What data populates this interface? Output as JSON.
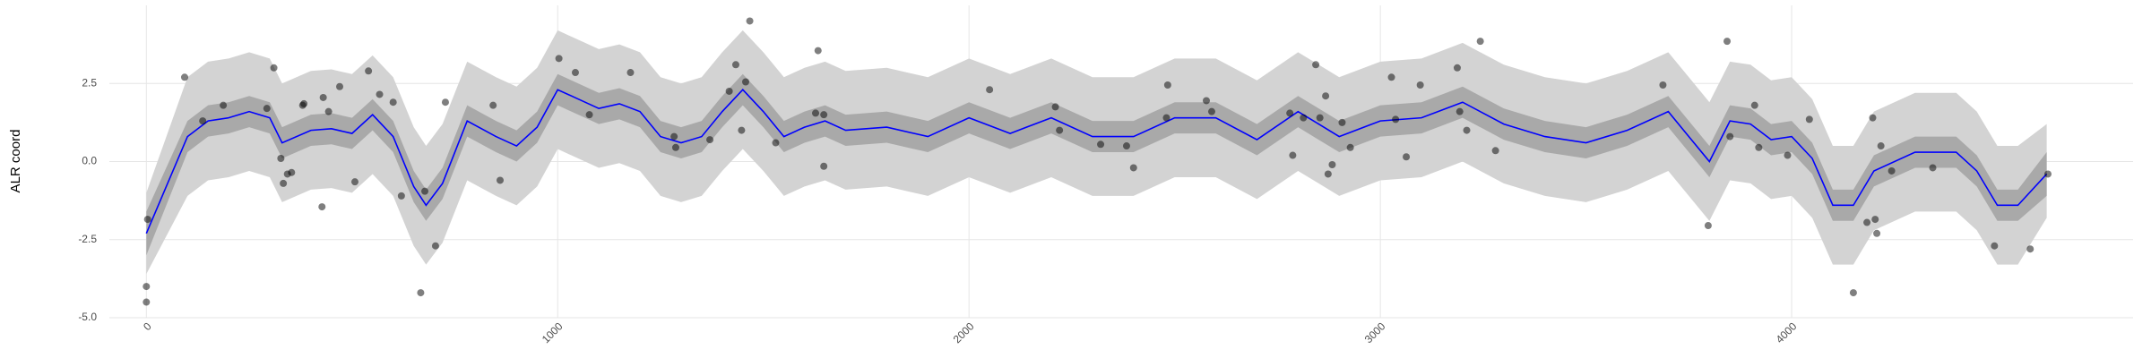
{
  "chart_data": {
    "type": "scatter",
    "y_label": "ALR coord",
    "xlim": [
      -90,
      4830
    ],
    "ylim": [
      -5,
      5
    ],
    "xticks": [
      0,
      1000,
      2000,
      3000,
      4000
    ],
    "yticks": [
      {
        "value": -5,
        "label": "-5.0"
      },
      -2.5,
      {
        "value": 0,
        "label": "0.0"
      },
      2.5
    ],
    "grid": true,
    "bands": [
      {
        "color": "#d3d3d3",
        "lower": [
          -3.6,
          -1.1,
          -0.6,
          -0.5,
          -0.3,
          -0.5,
          -1.3,
          -0.9,
          -0.85,
          -1.0,
          -0.4,
          -1.1,
          -2.7,
          -3.3,
          -2.6,
          -0.6,
          -1.1,
          -1.4,
          -0.8,
          0.4,
          0.1,
          -0.2,
          -0.05,
          -0.3,
          -1.1,
          -1.3,
          -1.1,
          -0.3,
          0.4,
          -0.3,
          -1.1,
          -0.8,
          -0.6,
          -0.9,
          -0.8,
          -1.1,
          -0.5,
          -1.0,
          -0.5,
          -1.1,
          -1.1,
          -0.5,
          -0.5,
          -1.2,
          -0.3,
          -0.7,
          -1.1,
          -0.6,
          -0.5,
          0.0,
          -0.7,
          -1.1,
          -1.3,
          -0.9,
          -0.3,
          -1.1,
          -1.9,
          -0.6,
          -0.7,
          -1.2,
          -1.1,
          -1.8,
          -3.3,
          -3.3,
          -2.2,
          -1.6,
          -1.6,
          -2.2,
          -3.3,
          -3.3,
          -1.8
        ],
        "upper": [
          -1.0,
          2.7,
          3.2,
          3.3,
          3.5,
          3.3,
          2.5,
          2.9,
          2.95,
          2.8,
          3.4,
          2.7,
          1.1,
          0.5,
          1.2,
          3.2,
          2.7,
          2.4,
          3.0,
          4.2,
          3.9,
          3.6,
          3.75,
          3.5,
          2.7,
          2.5,
          2.7,
          3.5,
          4.2,
          3.5,
          2.7,
          3.0,
          3.2,
          2.9,
          3.0,
          2.7,
          3.3,
          2.8,
          3.3,
          2.7,
          2.7,
          3.3,
          3.3,
          2.6,
          3.5,
          3.1,
          2.7,
          3.2,
          3.3,
          3.8,
          3.1,
          2.7,
          2.5,
          2.9,
          3.5,
          2.7,
          1.9,
          3.2,
          3.1,
          2.6,
          2.7,
          2.0,
          0.5,
          0.5,
          1.6,
          2.2,
          2.2,
          1.6,
          0.5,
          0.5,
          1.2
        ]
      },
      {
        "color": "#a9a9a9",
        "lower": [
          -3.0,
          0.3,
          0.8,
          0.9,
          1.1,
          0.9,
          0.1,
          0.5,
          0.55,
          0.4,
          1.0,
          0.3,
          -1.3,
          -1.9,
          -1.2,
          0.8,
          0.3,
          0.0,
          0.6,
          1.8,
          1.5,
          1.2,
          1.35,
          1.1,
          0.3,
          0.1,
          0.3,
          1.1,
          1.8,
          1.1,
          0.3,
          0.6,
          0.8,
          0.5,
          0.6,
          0.3,
          0.9,
          0.4,
          0.9,
          0.3,
          0.3,
          0.9,
          0.9,
          0.2,
          1.1,
          0.7,
          0.3,
          0.8,
          0.9,
          1.4,
          0.7,
          0.3,
          0.1,
          0.5,
          1.1,
          0.3,
          -0.5,
          0.8,
          0.7,
          0.2,
          0.3,
          -0.4,
          -1.9,
          -1.9,
          -0.8,
          -0.2,
          -0.2,
          -0.8,
          -1.9,
          -1.9,
          -1.1
        ],
        "upper": [
          -1.6,
          1.3,
          1.8,
          1.9,
          2.1,
          1.9,
          1.1,
          1.5,
          1.55,
          1.4,
          2.0,
          1.3,
          -0.3,
          -0.9,
          -0.2,
          1.8,
          1.3,
          1.0,
          1.6,
          2.8,
          2.5,
          2.2,
          2.35,
          2.1,
          1.3,
          1.1,
          1.3,
          2.1,
          2.8,
          2.1,
          1.3,
          1.6,
          1.8,
          1.5,
          1.6,
          1.3,
          1.9,
          1.4,
          1.9,
          1.3,
          1.3,
          1.9,
          1.9,
          1.2,
          2.1,
          1.7,
          1.3,
          1.8,
          1.9,
          2.4,
          1.7,
          1.3,
          1.1,
          1.5,
          2.1,
          1.3,
          0.5,
          1.8,
          1.7,
          1.2,
          1.3,
          0.6,
          -0.9,
          -0.9,
          0.2,
          0.8,
          0.8,
          0.2,
          -0.9,
          -0.9,
          0.3
        ]
      }
    ],
    "line": {
      "color": "#0000ff",
      "x": [
        0,
        100,
        150,
        200,
        250,
        300,
        330,
        400,
        450,
        500,
        550,
        600,
        650,
        680,
        720,
        780,
        850,
        900,
        950,
        1000,
        1050,
        1100,
        1150,
        1200,
        1250,
        1300,
        1350,
        1400,
        1450,
        1500,
        1550,
        1600,
        1650,
        1700,
        1800,
        1900,
        2000,
        2100,
        2200,
        2300,
        2400,
        2500,
        2600,
        2700,
        2800,
        2850,
        2900,
        3000,
        3100,
        3200,
        3300,
        3400,
        3500,
        3600,
        3700,
        3750,
        3800,
        3850,
        3900,
        3950,
        4000,
        4050,
        4100,
        4150,
        4200,
        4300,
        4400,
        4450,
        4500,
        4550,
        4620
      ],
      "values": [
        -2.3,
        0.8,
        1.3,
        1.4,
        1.6,
        1.4,
        0.6,
        1.0,
        1.05,
        0.9,
        1.5,
        0.8,
        -0.8,
        -1.4,
        -0.7,
        1.3,
        0.8,
        0.5,
        1.1,
        2.3,
        2.0,
        1.7,
        1.85,
        1.6,
        0.8,
        0.6,
        0.8,
        1.6,
        2.3,
        1.6,
        0.8,
        1.1,
        1.3,
        1.0,
        1.1,
        0.8,
        1.4,
        0.9,
        1.4,
        0.8,
        0.8,
        1.4,
        1.4,
        0.7,
        1.6,
        1.2,
        0.8,
        1.3,
        1.4,
        1.9,
        1.2,
        0.8,
        0.6,
        1.0,
        1.6,
        0.8,
        0.0,
        1.3,
        1.2,
        0.7,
        0.8,
        0.1,
        -1.4,
        -1.4,
        -0.3,
        0.3,
        0.3,
        -0.3,
        -1.4,
        -1.4,
        -0.4
      ]
    },
    "points": {
      "color": "#000000",
      "x": [
        0,
        0,
        3,
        93,
        137,
        187,
        293,
        310,
        327,
        333,
        343,
        353,
        380,
        383,
        427,
        430,
        443,
        470,
        507,
        540,
        567,
        600,
        620,
        667,
        677,
        703,
        727,
        843,
        860,
        1003,
        1043,
        1077,
        1177,
        1283,
        1287,
        1370,
        1417,
        1433,
        1447,
        1457,
        1467,
        1530,
        1627,
        1633,
        1647,
        1647,
        2050,
        2210,
        2220,
        2320,
        2383,
        2400,
        2480,
        2483,
        2577,
        2590,
        2780,
        2787,
        2813,
        2843,
        2853,
        2867,
        2873,
        2883,
        2907,
        2927,
        3027,
        3037,
        3063,
        3097,
        3187,
        3193,
        3210,
        3243,
        3280,
        3687,
        3797,
        3843,
        3850,
        3910,
        3920,
        3990,
        4043,
        4150,
        4183,
        4197,
        4203,
        4207,
        4217,
        4243,
        4343,
        4493,
        4580,
        4623
      ],
      "y": [
        -4.0,
        -4.5,
        -1.85,
        2.7,
        1.3,
        1.8,
        1.7,
        3.0,
        0.1,
        -0.7,
        -0.4,
        -0.35,
        1.8,
        1.85,
        -1.45,
        2.05,
        1.6,
        2.4,
        -0.65,
        2.9,
        2.15,
        1.9,
        -1.1,
        -4.2,
        -0.95,
        -2.7,
        1.9,
        1.8,
        -0.6,
        3.3,
        2.85,
        1.5,
        2.85,
        0.8,
        0.45,
        0.7,
        2.25,
        3.1,
        1.0,
        2.55,
        4.5,
        0.6,
        1.55,
        3.55,
        1.5,
        -0.15,
        2.3,
        1.75,
        1.0,
        0.55,
        0.5,
        -0.2,
        1.4,
        2.45,
        1.95,
        1.6,
        1.55,
        0.2,
        1.4,
        3.1,
        1.4,
        2.1,
        -0.4,
        -0.1,
        1.25,
        0.45,
        2.7,
        1.35,
        0.15,
        2.45,
        3.0,
        1.6,
        1.0,
        3.85,
        0.35,
        2.45,
        -2.05,
        3.85,
        0.8,
        1.8,
        0.45,
        0.2,
        1.35,
        -4.2,
        -1.95,
        1.4,
        -1.85,
        -2.3,
        0.5,
        -0.3,
        -0.2,
        -2.7,
        -2.8,
        -0.4
      ]
    }
  }
}
